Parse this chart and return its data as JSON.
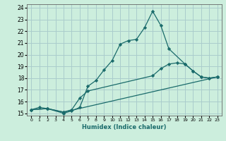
{
  "xlabel": "Humidex (Indice chaleur)",
  "bg_color": "#cceedd",
  "grid_color": "#aacccc",
  "line_color": "#1a6b6b",
  "xlim": [
    -0.5,
    23.5
  ],
  "ylim": [
    14.8,
    24.3
  ],
  "xticks": [
    0,
    1,
    2,
    3,
    4,
    5,
    6,
    7,
    8,
    9,
    10,
    11,
    12,
    13,
    14,
    15,
    16,
    17,
    18,
    19,
    20,
    21,
    22,
    23
  ],
  "yticks": [
    15,
    16,
    17,
    18,
    19,
    20,
    21,
    22,
    23,
    24
  ],
  "series": [
    {
      "x": [
        0,
        1,
        2,
        4,
        5,
        6,
        7,
        8,
        9,
        10,
        11,
        12,
        13,
        14,
        15,
        16,
        17,
        19,
        20,
        21,
        22,
        23
      ],
      "y": [
        15.3,
        15.5,
        15.4,
        15.0,
        15.2,
        15.5,
        17.3,
        17.8,
        18.7,
        19.5,
        20.9,
        21.2,
        21.3,
        22.3,
        23.7,
        22.5,
        20.5,
        19.2,
        18.6,
        18.1,
        18.0,
        18.1
      ]
    },
    {
      "x": [
        0,
        2,
        4,
        5,
        6,
        7,
        15,
        16,
        17,
        18,
        19,
        20,
        21,
        22,
        23
      ],
      "y": [
        15.3,
        15.4,
        15.1,
        15.3,
        16.3,
        16.9,
        18.2,
        18.8,
        19.2,
        19.3,
        19.2,
        18.6,
        18.1,
        18.0,
        18.1
      ]
    },
    {
      "x": [
        0,
        2,
        4,
        23
      ],
      "y": [
        15.3,
        15.4,
        15.1,
        18.1
      ]
    }
  ]
}
